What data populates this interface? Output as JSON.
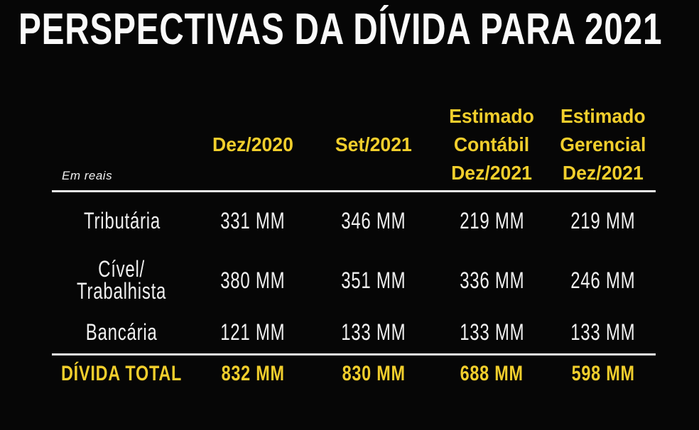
{
  "title": "PERSPECTIVAS DA DÍVIDA PARA 2021",
  "colors": {
    "background": "#060606",
    "accent_yellow": "#F1CE2C",
    "text_white": "#F0F0F0",
    "divider_white": "#EAEAEA",
    "title_white": "#FAFAFA"
  },
  "table": {
    "unit_note": "Em reais",
    "columns": [
      {
        "lines": [
          "Dez/2020"
        ]
      },
      {
        "lines": [
          "Set/2021"
        ]
      },
      {
        "lines": [
          "Estimado",
          "Contábil",
          "Dez/2021"
        ]
      },
      {
        "lines": [
          "Estimado",
          "Gerencial",
          "Dez/2021"
        ]
      }
    ],
    "rows": [
      {
        "label_lines": [
          "Tributária"
        ],
        "values": [
          "331 MM",
          "346 MM",
          "219 MM",
          "219 MM"
        ]
      },
      {
        "label_lines": [
          "Cível/",
          "Trabalhista"
        ],
        "values": [
          "380 MM",
          "351 MM",
          "336 MM",
          "246 MM"
        ]
      },
      {
        "label_lines": [
          "Bancária"
        ],
        "values": [
          "121 MM",
          "133 MM",
          "133 MM",
          "133 MM"
        ]
      }
    ],
    "total": {
      "label": "DÍVIDA TOTAL",
      "values": [
        "832 MM",
        "830 MM",
        "688 MM",
        "598 MM"
      ]
    }
  },
  "chart_data": {
    "type": "table",
    "title": "PERSPECTIVAS DA DÍVIDA PARA 2021",
    "unit_note": "Em reais",
    "value_unit": "MM",
    "columns": [
      "Dez/2020",
      "Set/2021",
      "Estimado Contábil Dez/2021",
      "Estimado Gerencial Dez/2021"
    ],
    "rows": [
      {
        "category": "Tributária",
        "values_mm": [
          331,
          346,
          219,
          219
        ]
      },
      {
        "category": "Cível/Trabalhista",
        "values_mm": [
          380,
          351,
          336,
          246
        ]
      },
      {
        "category": "Bancária",
        "values_mm": [
          121,
          133,
          133,
          133
        ]
      }
    ],
    "total": {
      "category": "DÍVIDA TOTAL",
      "values_mm": [
        832,
        830,
        688,
        598
      ]
    }
  }
}
